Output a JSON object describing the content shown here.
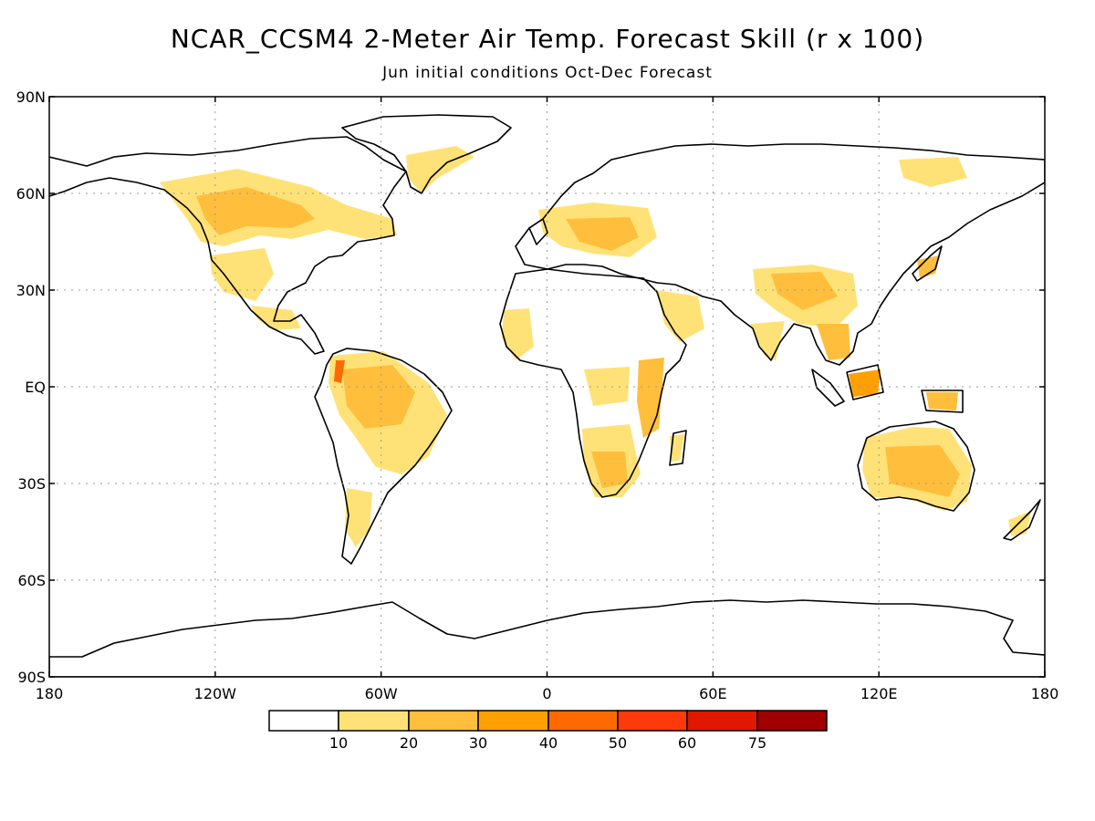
{
  "title": "NCAR_CCSM4 2-Meter Air Temp. Forecast Skill (r x 100)",
  "subtitle": "Jun initial conditions  Oct-Dec Forecast",
  "map": {
    "lat_labels": [
      "90N",
      "60N",
      "30N",
      "EQ",
      "30S",
      "60S",
      "90S"
    ],
    "lon_labels": [
      "180",
      "120W",
      "60W",
      "0",
      "60E",
      "120E",
      "180"
    ],
    "lat_values": [
      90,
      60,
      30,
      0,
      -30,
      -60,
      -90
    ],
    "lon_values": [
      -180,
      -120,
      -60,
      0,
      60,
      120,
      180
    ],
    "grid": "dotted"
  },
  "colorbar": {
    "labels": [
      "10",
      "20",
      "30",
      "40",
      "50",
      "60",
      "75"
    ],
    "colors": [
      "#ffffff",
      "#ffe277",
      "#ffbe3c",
      "#ffa000",
      "#ff6a00",
      "#ff3a0a",
      "#e01800",
      "#a00000"
    ]
  }
}
